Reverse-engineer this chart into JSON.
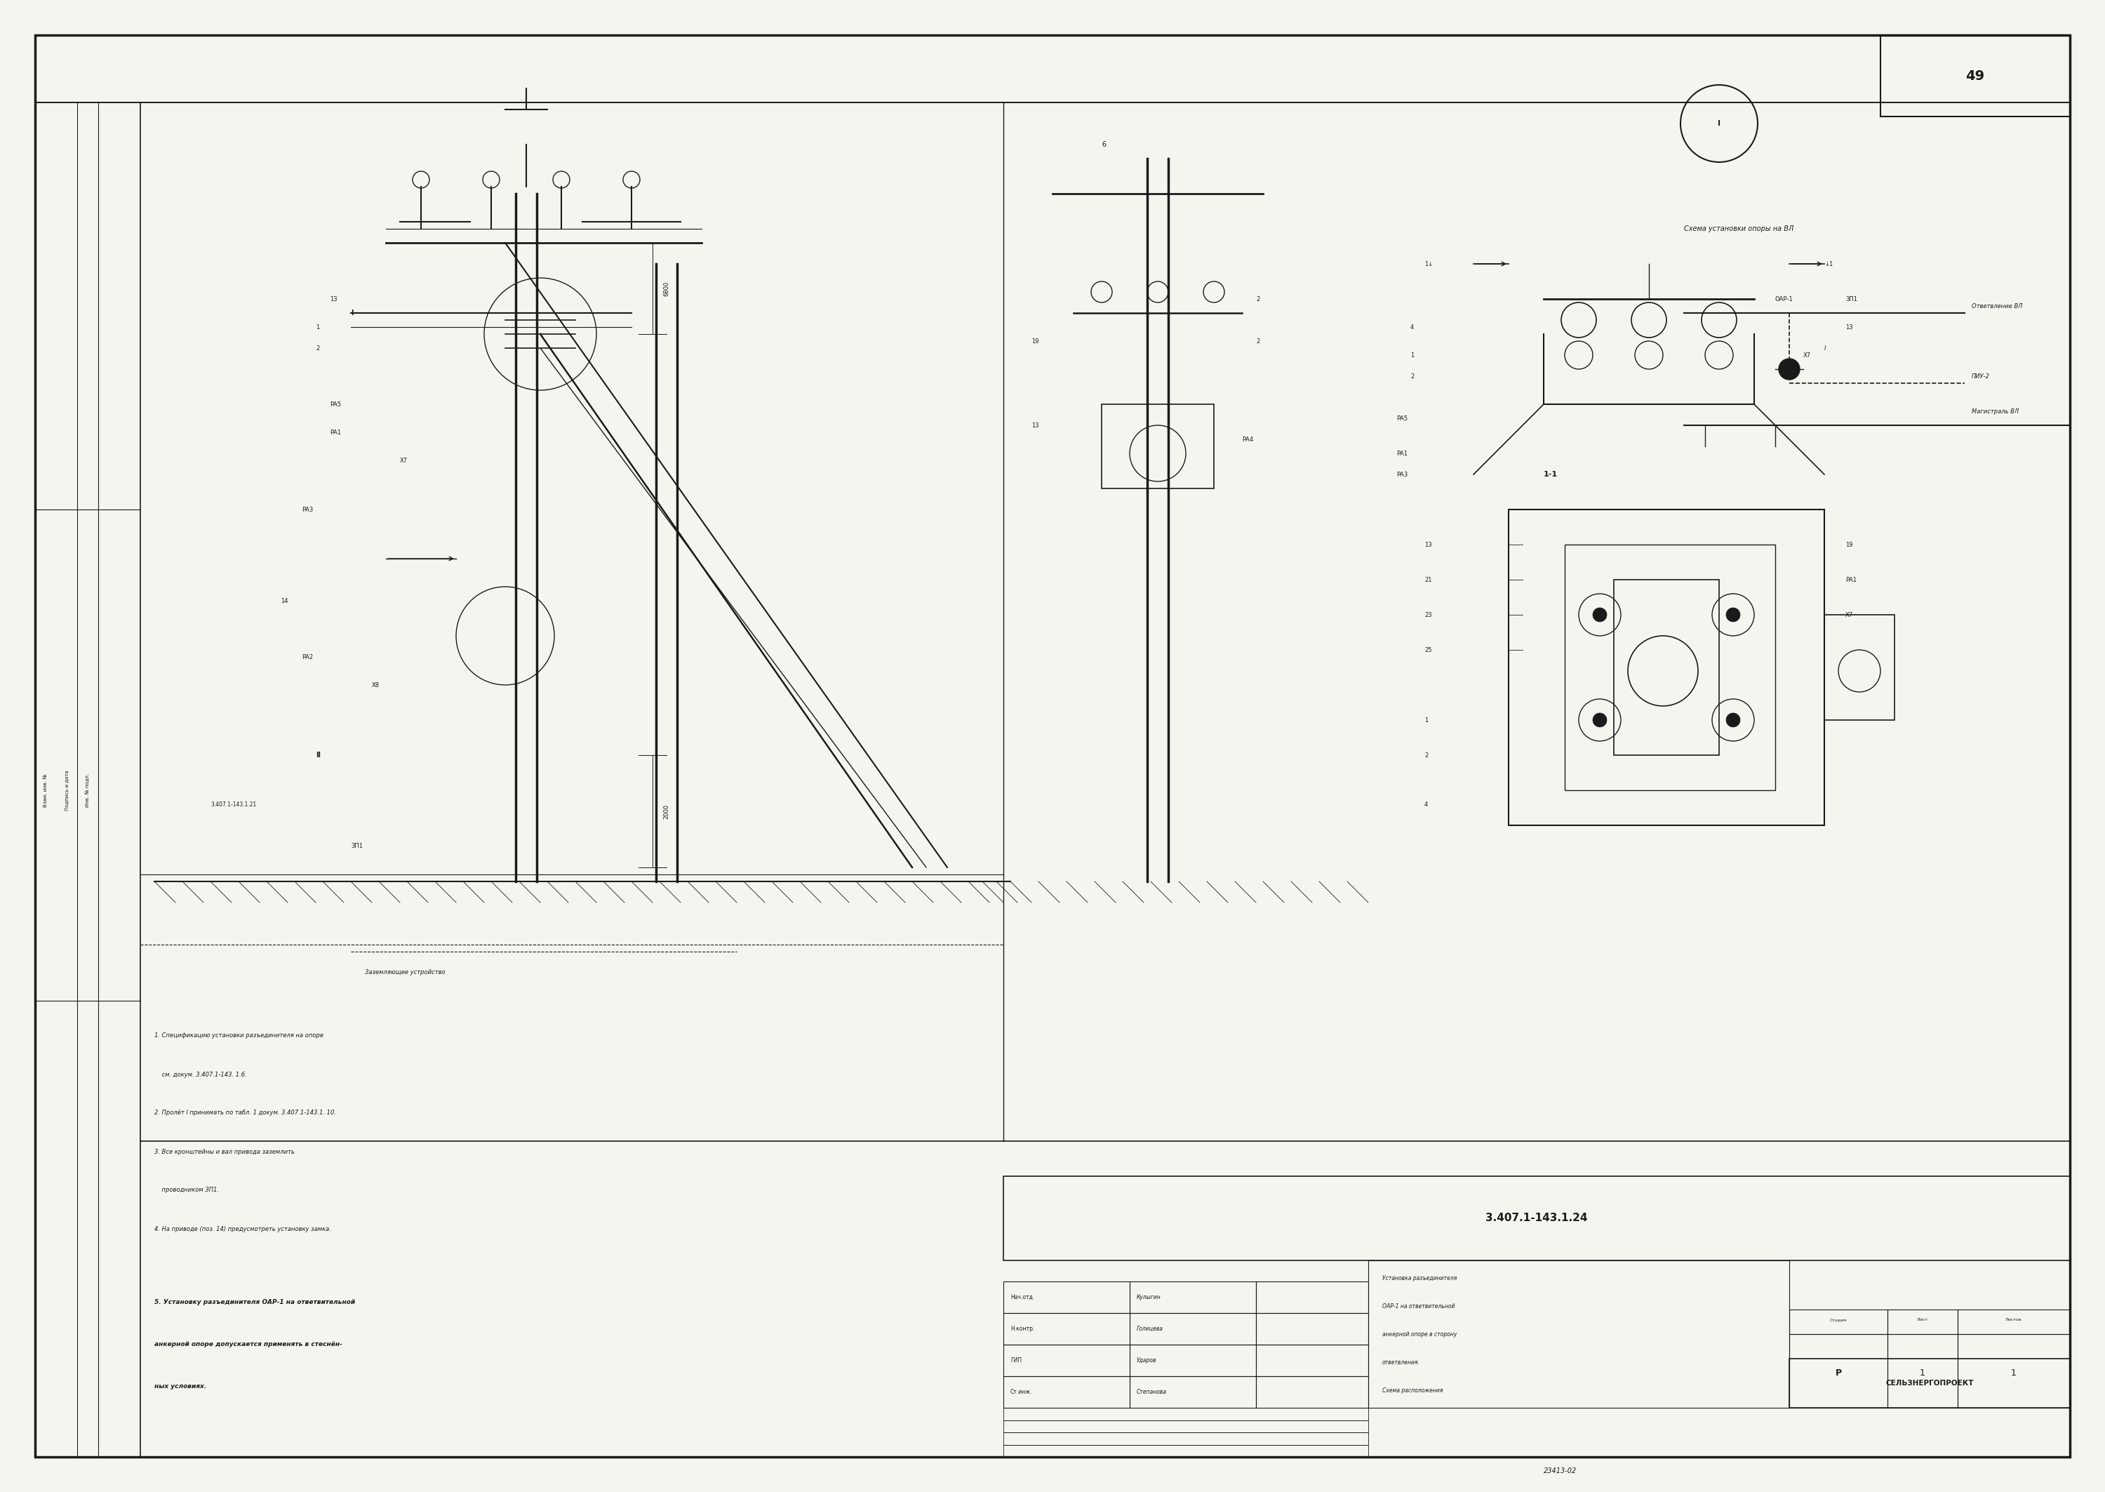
{
  "bg_color": "#f5f5f0",
  "line_color": "#1a1a1a",
  "border_color": "#000000",
  "page_number": "49",
  "drawing_number": "3.407.1-143.1.24",
  "stamp_number": "23413-02",
  "title_main": "Установка разъединителя",
  "title_sub1": "ОАР-1 на ответвительной",
  "title_sub2": "анкерной опоре в сторону",
  "title_sub3": "ответвления.",
  "title_sub4": "Схема расположения",
  "stage": "Р",
  "sheet": "1",
  "sheets": "1",
  "company": "СЕЛЬЗНЕРГОПРОЕКТ",
  "note1": "1. Спецификацию установки разъединителя на опоре",
  "note1b": "см. докум. 3.407.1-143. 1.6.",
  "note2": "2. Пролёт l принимать по табл. 1 докум. 3.407.1-143.1. 10.",
  "note3": "3. Все кронштейны и вал привода заземлить",
  "note3b": "проводником ЗП1.",
  "note4": "4. На приводе (поз. 14) предусмотреть установку замка.",
  "note5": "5. Установку разъединителя ОАР-1 на ответвительной",
  "note5b": "анкерной опоре допускается применять в стеснён-",
  "note5c": "ных условиях.",
  "scheme_label": "Схема установки опоры на ВЛ",
  "label_ОАР1": "ОАР-1",
  "label_otvl": "Ответвление ВЛ",
  "label_l": "l",
  "label_piu2": "ПИУ-2",
  "label_mag": "Магистраль ВЛ",
  "dim_6800": "6800",
  "dim_2000": "2000",
  "label_zem": "Заземляющее устройство",
  "label_11": "1-1",
  "ref_3407": "3.407.1-143.1.21",
  "authors": [
    [
      "Нач.отд.",
      "Кулыгин",
      "Установка разъединителя"
    ],
    [
      "Н.контр.",
      "Голицева",
      "ОАР-1 на ответвительной"
    ],
    [
      "ГИП",
      "Ударов",
      "анкерной опоре в сторону"
    ],
    [
      "Ст.инж.",
      "Степанова",
      "ответвления. Схема расположения"
    ]
  ]
}
